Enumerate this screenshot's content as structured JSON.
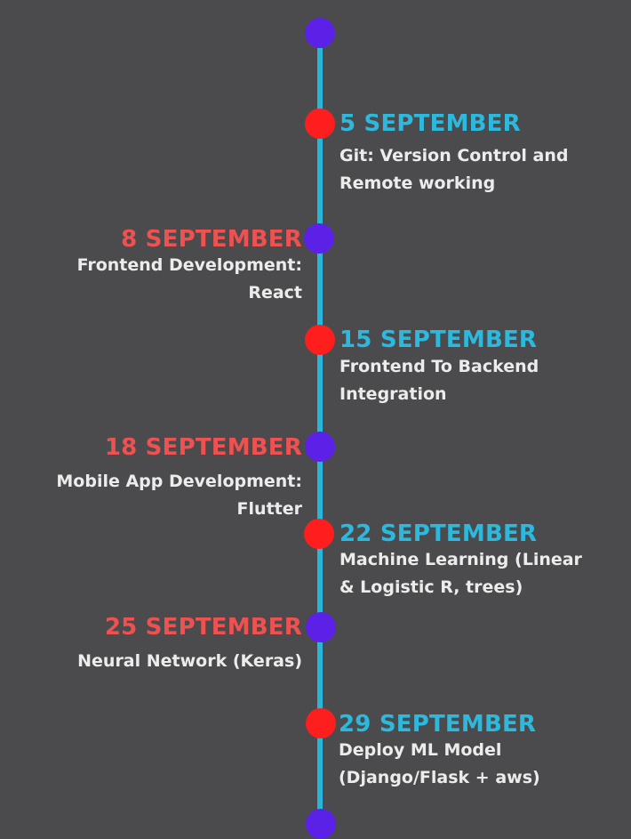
{
  "colors": {
    "background": "#4b4b4d",
    "line": "#29b6db",
    "dot_purple": "#5b21e6",
    "dot_red": "#ff1e1e",
    "date_right": "#2db9de",
    "date_left": "#ef5150",
    "description": "#ececec"
  },
  "events": [
    {
      "date": "5 SEPTEMBER",
      "lines": [
        "Git: Version Control and",
        "Remote working"
      ]
    },
    {
      "date": "8 SEPTEMBER",
      "lines": [
        "Frontend Development:",
        "React"
      ]
    },
    {
      "date": "15 SEPTEMBER",
      "lines": [
        "Frontend To Backend",
        "Integration"
      ]
    },
    {
      "date": "18 SEPTEMBER",
      "lines": [
        "Mobile App Development:",
        "Flutter"
      ]
    },
    {
      "date": "22 SEPTEMBER",
      "lines": [
        "Machine Learning (Linear",
        "& Logistic R, trees)"
      ]
    },
    {
      "date": "25 SEPTEMBER",
      "lines": [
        "Neural Network (Keras)"
      ]
    },
    {
      "date": "29 SEPTEMBER",
      "lines": [
        "Deploy ML Model",
        "(Django/Flask + aws)"
      ]
    }
  ]
}
